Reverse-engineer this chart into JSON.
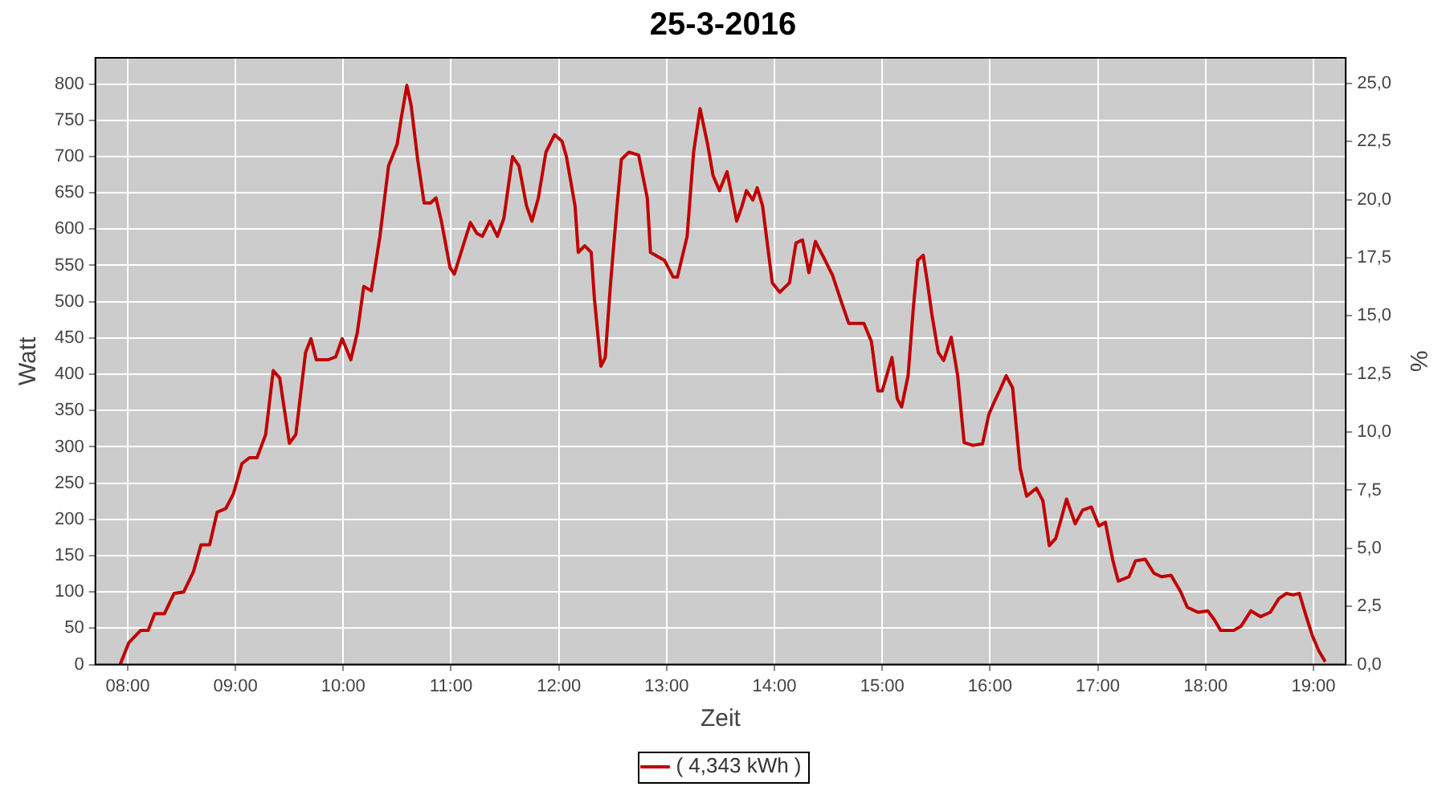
{
  "chart_data": {
    "type": "line",
    "title": "25-3-2016",
    "xlabel": "Zeit",
    "ylabel": "Watt",
    "y2label": "%",
    "xlim": [
      7.7,
      19.3
    ],
    "xticks": [
      {
        "value": 8,
        "label": "08:00"
      },
      {
        "value": 9,
        "label": "09:00"
      },
      {
        "value": 10,
        "label": "10:00"
      },
      {
        "value": 11,
        "label": "11:00"
      },
      {
        "value": 12,
        "label": "12:00"
      },
      {
        "value": 13,
        "label": "13:00"
      },
      {
        "value": 14,
        "label": "14:00"
      },
      {
        "value": 15,
        "label": "15:00"
      },
      {
        "value": 16,
        "label": "16:00"
      },
      {
        "value": 17,
        "label": "17:00"
      },
      {
        "value": 18,
        "label": "18:00"
      },
      {
        "value": 19,
        "label": "19:00"
      }
    ],
    "ylim": [
      0,
      836
    ],
    "yticks": [
      0,
      50,
      100,
      150,
      200,
      250,
      300,
      350,
      400,
      450,
      500,
      550,
      600,
      650,
      700,
      750,
      800
    ],
    "y2lim": [
      0,
      26.1
    ],
    "y2ticks": [
      {
        "value": 0,
        "label": "0,0"
      },
      {
        "value": 2.5,
        "label": "2,5"
      },
      {
        "value": 5,
        "label": "5,0"
      },
      {
        "value": 7.5,
        "label": "7,5"
      },
      {
        "value": 10,
        "label": "10,0"
      },
      {
        "value": 12.5,
        "label": "12,5"
      },
      {
        "value": 15,
        "label": "15,0"
      },
      {
        "value": 17.5,
        "label": "17,5"
      },
      {
        "value": 20,
        "label": "20,0"
      },
      {
        "value": 22.5,
        "label": "22,5"
      },
      {
        "value": 25,
        "label": "25,0"
      }
    ],
    "grid": true,
    "legend": "bottom",
    "marker": "none",
    "line_style": "solid",
    "series": [
      {
        "name": "( 4,343 kWh )",
        "color": "#c00000",
        "x": [
          7.93,
          8.01,
          8.12,
          8.19,
          8.25,
          8.34,
          8.43,
          8.52,
          8.61,
          8.68,
          8.76,
          8.83,
          8.91,
          8.98,
          9.06,
          9.13,
          9.2,
          9.28,
          9.35,
          9.41,
          9.5,
          9.56,
          9.65,
          9.7,
          9.75,
          9.86,
          9.93,
          9.99,
          10.07,
          10.13,
          10.19,
          10.26,
          10.34,
          10.42,
          10.5,
          10.54,
          10.59,
          10.63,
          10.69,
          10.75,
          10.81,
          10.86,
          10.91,
          10.99,
          11.03,
          11.12,
          11.18,
          11.24,
          11.29,
          11.36,
          11.43,
          11.49,
          11.57,
          11.63,
          11.7,
          11.75,
          11.81,
          11.88,
          11.96,
          12.03,
          12.07,
          12.15,
          12.18,
          12.24,
          12.3,
          12.33,
          12.39,
          12.43,
          12.48,
          12.54,
          12.58,
          12.65,
          12.74,
          12.82,
          12.85,
          12.92,
          12.98,
          13.06,
          13.1,
          13.19,
          13.25,
          13.31,
          13.38,
          13.43,
          13.49,
          13.56,
          13.59,
          13.65,
          13.7,
          13.74,
          13.8,
          13.84,
          13.89,
          13.98,
          14.05,
          14.14,
          14.2,
          14.26,
          14.32,
          14.38,
          14.47,
          14.54,
          14.62,
          14.69,
          14.83,
          14.9,
          14.96,
          15.0,
          15.09,
          15.14,
          15.18,
          15.24,
          15.29,
          15.33,
          15.38,
          15.42,
          15.46,
          15.52,
          15.57,
          15.64,
          15.7,
          15.76,
          15.84,
          15.93,
          15.99,
          16.04,
          16.1,
          16.15,
          16.21,
          16.28,
          16.34,
          16.43,
          16.49,
          16.55,
          16.61,
          16.67,
          16.71,
          16.79,
          16.86,
          16.94,
          17.01,
          17.07,
          17.14,
          17.19,
          17.29,
          17.35,
          17.44,
          17.52,
          17.59,
          17.68,
          17.77,
          17.83,
          17.93,
          18.02,
          18.08,
          18.14,
          18.26,
          18.33,
          18.42,
          18.51,
          18.6,
          18.68,
          18.75,
          18.81,
          18.87,
          18.93,
          18.99,
          19.05,
          19.11
        ],
        "values": [
          0,
          30,
          47,
          47,
          70,
          70,
          98,
          100,
          128,
          165,
          165,
          210,
          215,
          235,
          277,
          285,
          285,
          317,
          405,
          395,
          305,
          317,
          430,
          449,
          420,
          420,
          424,
          449,
          420,
          457,
          521,
          515,
          590,
          687,
          717,
          755,
          798,
          770,
          696,
          636,
          636,
          643,
          611,
          547,
          538,
          581,
          609,
          594,
          590,
          611,
          590,
          615,
          700,
          687,
          632,
          611,
          643,
          706,
          730,
          721,
          700,
          632,
          568,
          577,
          568,
          504,
          411,
          423,
          526,
          632,
          696,
          706,
          702,
          643,
          568,
          562,
          557,
          534,
          534,
          590,
          706,
          766,
          717,
          674,
          653,
          679,
          657,
          611,
          632,
          653,
          640,
          657,
          632,
          526,
          513,
          526,
          581,
          585,
          540,
          583,
          557,
          536,
          500,
          470,
          470,
          445,
          377,
          377,
          423,
          366,
          355,
          398,
          494,
          557,
          564,
          526,
          483,
          430,
          419,
          451,
          398,
          306,
          302,
          304,
          345,
          362,
          381,
          398,
          381,
          270,
          232,
          243,
          226,
          164,
          174,
          206,
          228,
          194,
          213,
          217,
          191,
          196,
          143,
          115,
          121,
          143,
          145,
          126,
          121,
          123,
          100,
          79,
          72,
          74,
          62,
          47,
          47,
          53,
          74,
          66,
          72,
          91,
          98,
          96,
          98,
          68,
          40,
          19,
          4
        ]
      }
    ]
  }
}
